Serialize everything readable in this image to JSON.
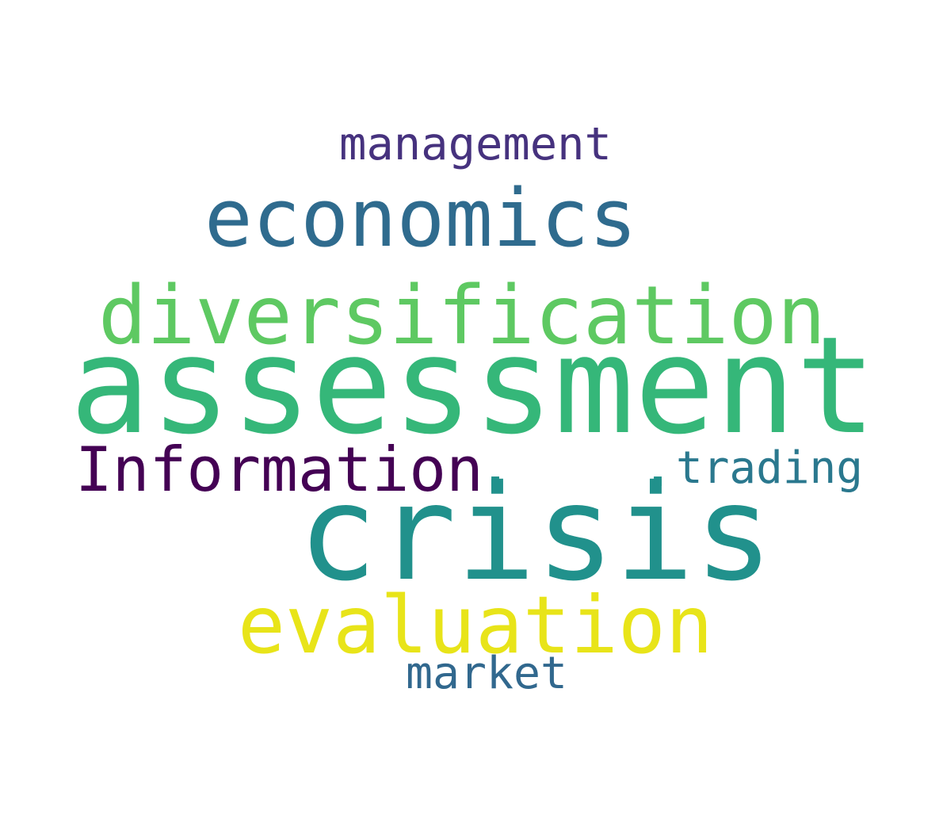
{
  "words": [
    {
      "text": "management",
      "color": "#46327e"
    },
    {
      "text": "economics",
      "color": "#2f6b8e"
    },
    {
      "text": "diversification",
      "color": "#5ec962"
    },
    {
      "text": "assessment",
      "color": "#35b779"
    },
    {
      "text": "Information",
      "color": "#440154"
    },
    {
      "text": "trading",
      "color": "#2a788e"
    },
    {
      "text": "crisis",
      "color": "#21918c"
    },
    {
      "text": "evaluation",
      "color": "#e8e419"
    },
    {
      "text": "market",
      "color": "#31688e"
    }
  ],
  "dots": [
    {
      "color": "#21918c"
    },
    {
      "color": "#21918c"
    }
  ]
}
